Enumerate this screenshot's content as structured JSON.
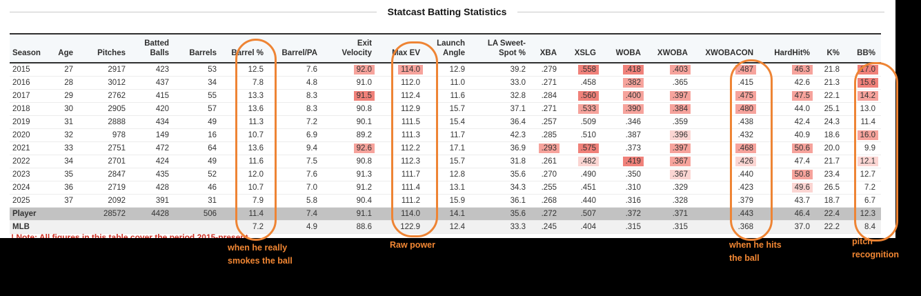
{
  "title": "Statcast Batting Statistics",
  "note": "! Note: All figures in this table cover the period 2015-present.",
  "annotations": {
    "barrel_note": "when he really\nsmokes the ball",
    "maxev_note": "Raw power",
    "xwobacon_note": "when he hits\nthe ball",
    "bb_note": "pitch\nrecognition"
  },
  "colors": {
    "highlight_strong": "#f0817a",
    "highlight_medium": "#f6a39c",
    "highlight_light": "#fbd5d2",
    "annotation_orange": "#ee8434",
    "annotation_text_orange": "#f28733",
    "note_red": "#cc2e22",
    "player_row_gray": "#c2c2c2",
    "mlb_row_gray": "#f1f1f1",
    "header_bg": "#f5f8fa"
  },
  "chart_data": {
    "type": "table",
    "title": "Statcast Batting Statistics",
    "columns": [
      {
        "label": "Season",
        "slug": "season"
      },
      {
        "label": "Age",
        "slug": "age"
      },
      {
        "label": "Pitches",
        "slug": "pitches"
      },
      {
        "label": "Batted\nBalls",
        "slug": "batted-balls"
      },
      {
        "label": "Barrels",
        "slug": "barrels"
      },
      {
        "label": "Barrel %",
        "slug": "barrel-pct"
      },
      {
        "label": "Barrel/PA",
        "slug": "barrel-pa"
      },
      {
        "label": "Exit\nVelocity",
        "slug": "exit-velocity"
      },
      {
        "label": "Max EV",
        "slug": "max-ev"
      },
      {
        "label": "Launch\nAngle",
        "slug": "launch-angle"
      },
      {
        "label": "LA Sweet-\nSpot %",
        "slug": "la-sweet-spot-pct"
      },
      {
        "label": "XBA",
        "slug": "xba"
      },
      {
        "label": "XSLG",
        "slug": "xslg"
      },
      {
        "label": "WOBA",
        "slug": "woba"
      },
      {
        "label": "XWOBA",
        "slug": "xwoba"
      },
      {
        "label": "XWOBACON",
        "slug": "xwobacon"
      },
      {
        "label": "HardHit%",
        "slug": "hardhit-pct"
      },
      {
        "label": "K%",
        "slug": "k-pct"
      },
      {
        "label": "BB%",
        "slug": "bb-pct"
      }
    ],
    "rows": [
      {
        "label": "2015",
        "row_type": "year",
        "values": [
          "27",
          "2917",
          "423",
          "53",
          "12.5",
          "7.6",
          "92.0",
          "114.0",
          "12.9",
          "39.2",
          ".279",
          ".558",
          ".418",
          ".403",
          ".487",
          "46.3",
          "21.8",
          "17.0"
        ],
        "highlights": [
          0,
          0,
          0,
          0,
          0,
          0,
          2,
          2,
          0,
          0,
          0,
          3,
          3,
          2,
          2,
          2,
          0,
          3
        ]
      },
      {
        "label": "2016",
        "row_type": "year",
        "values": [
          "28",
          "3012",
          "437",
          "34",
          "7.8",
          "4.8",
          "91.0",
          "112.0",
          "11.0",
          "33.0",
          ".271",
          ".458",
          ".382",
          ".365",
          ".415",
          "42.6",
          "21.3",
          "15.6"
        ],
        "highlights": [
          0,
          0,
          0,
          0,
          0,
          0,
          0,
          0,
          0,
          0,
          0,
          0,
          2,
          0,
          0,
          0,
          0,
          3
        ]
      },
      {
        "label": "2017",
        "row_type": "year",
        "values": [
          "29",
          "2762",
          "415",
          "55",
          "13.3",
          "8.3",
          "91.5",
          "112.4",
          "11.6",
          "32.8",
          ".284",
          ".560",
          ".400",
          ".397",
          ".475",
          "47.5",
          "22.1",
          "14.2"
        ],
        "highlights": [
          0,
          0,
          0,
          0,
          0,
          0,
          3,
          0,
          0,
          0,
          0,
          3,
          2,
          2,
          2,
          2,
          0,
          2
        ]
      },
      {
        "label": "2018",
        "row_type": "year",
        "values": [
          "30",
          "2905",
          "420",
          "57",
          "13.6",
          "8.3",
          "90.8",
          "112.9",
          "15.7",
          "37.1",
          ".271",
          ".533",
          ".390",
          ".384",
          ".480",
          "44.0",
          "25.1",
          "13.0"
        ],
        "highlights": [
          0,
          0,
          0,
          0,
          0,
          0,
          0,
          0,
          0,
          0,
          0,
          2,
          2,
          2,
          2,
          0,
          0,
          0
        ]
      },
      {
        "label": "2019",
        "row_type": "year",
        "values": [
          "31",
          "2888",
          "434",
          "49",
          "11.3",
          "7.2",
          "90.1",
          "111.5",
          "15.4",
          "36.4",
          ".257",
          ".509",
          ".346",
          ".359",
          ".438",
          "42.4",
          "24.3",
          "11.4"
        ],
        "highlights": [
          0,
          0,
          0,
          0,
          0,
          0,
          0,
          0,
          0,
          0,
          0,
          0,
          0,
          0,
          0,
          0,
          0,
          0
        ]
      },
      {
        "label": "2020",
        "row_type": "year",
        "values": [
          "32",
          "978",
          "149",
          "16",
          "10.7",
          "6.9",
          "89.2",
          "111.3",
          "11.7",
          "42.3",
          ".285",
          ".510",
          ".387",
          ".396",
          ".432",
          "40.9",
          "18.6",
          "16.0"
        ],
        "highlights": [
          0,
          0,
          0,
          0,
          0,
          0,
          0,
          0,
          0,
          0,
          0,
          0,
          0,
          1,
          0,
          0,
          0,
          2
        ]
      },
      {
        "label": "2021",
        "row_type": "year",
        "values": [
          "33",
          "2751",
          "472",
          "64",
          "13.6",
          "9.4",
          "92.6",
          "112.2",
          "17.1",
          "36.9",
          ".293",
          ".575",
          ".373",
          ".397",
          ".468",
          "50.6",
          "20.0",
          "9.9"
        ],
        "highlights": [
          0,
          0,
          0,
          0,
          0,
          0,
          2,
          0,
          0,
          0,
          2,
          3,
          0,
          2,
          2,
          2,
          0,
          0
        ]
      },
      {
        "label": "2022",
        "row_type": "year",
        "values": [
          "34",
          "2701",
          "424",
          "49",
          "11.6",
          "7.5",
          "90.8",
          "112.3",
          "15.7",
          "31.8",
          ".261",
          ".482",
          ".419",
          ".367",
          ".426",
          "47.4",
          "21.7",
          "12.1"
        ],
        "highlights": [
          0,
          0,
          0,
          0,
          0,
          0,
          0,
          0,
          0,
          0,
          0,
          1,
          3,
          2,
          1,
          0,
          0,
          1
        ]
      },
      {
        "label": "2023",
        "row_type": "year",
        "values": [
          "35",
          "2847",
          "435",
          "52",
          "12.0",
          "7.6",
          "91.3",
          "111.7",
          "12.8",
          "35.6",
          ".270",
          ".490",
          ".350",
          ".367",
          ".440",
          "50.8",
          "23.4",
          "12.7"
        ],
        "highlights": [
          0,
          0,
          0,
          0,
          0,
          0,
          0,
          0,
          0,
          0,
          0,
          0,
          0,
          1,
          0,
          2,
          0,
          0
        ]
      },
      {
        "label": "2024",
        "row_type": "year",
        "values": [
          "36",
          "2719",
          "428",
          "46",
          "10.7",
          "7.0",
          "91.2",
          "111.4",
          "13.1",
          "34.3",
          ".255",
          ".451",
          ".310",
          ".329",
          ".423",
          "49.6",
          "26.5",
          "7.2"
        ],
        "highlights": [
          0,
          0,
          0,
          0,
          0,
          0,
          0,
          0,
          0,
          0,
          0,
          0,
          0,
          0,
          0,
          1,
          0,
          0
        ]
      },
      {
        "label": "2025",
        "row_type": "year",
        "values": [
          "37",
          "2092",
          "391",
          "31",
          "7.9",
          "5.8",
          "90.4",
          "111.2",
          "15.9",
          "36.1",
          ".268",
          ".440",
          ".316",
          ".328",
          ".379",
          "43.7",
          "18.7",
          "6.7"
        ],
        "highlights": [
          0,
          0,
          0,
          0,
          0,
          0,
          0,
          0,
          0,
          0,
          0,
          0,
          0,
          0,
          0,
          0,
          0,
          0
        ]
      },
      {
        "label": "Player",
        "row_type": "player",
        "values": [
          "",
          "28572",
          "4428",
          "506",
          "11.4",
          "7.4",
          "91.1",
          "114.0",
          "14.1",
          "35.6",
          ".272",
          ".507",
          ".372",
          ".371",
          ".443",
          "46.4",
          "22.4",
          "12.3"
        ],
        "highlights": [
          0,
          0,
          0,
          0,
          0,
          0,
          0,
          0,
          0,
          0,
          0,
          0,
          0,
          0,
          0,
          0,
          0,
          0
        ]
      },
      {
        "label": "MLB",
        "row_type": "mlb",
        "values": [
          "",
          "",
          "",
          "",
          "7.2",
          "4.9",
          "88.6",
          "122.9",
          "12.4",
          "33.3",
          ".245",
          ".404",
          ".315",
          ".315",
          ".368",
          "37.0",
          "22.2",
          "8.4"
        ],
        "highlights": [
          0,
          0,
          0,
          0,
          0,
          0,
          0,
          0,
          0,
          0,
          0,
          0,
          0,
          0,
          0,
          0,
          0,
          0
        ]
      }
    ]
  }
}
